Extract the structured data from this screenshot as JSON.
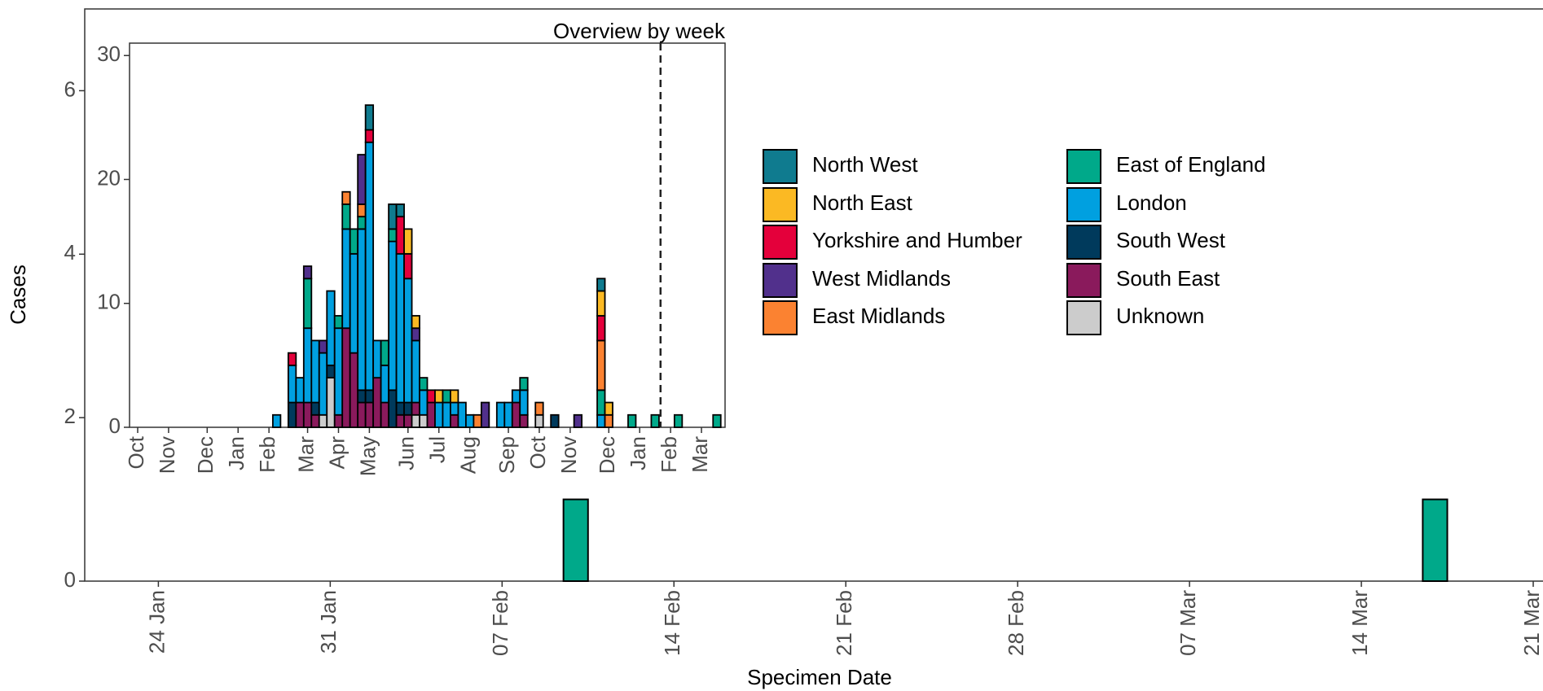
{
  "chart_data": [
    {
      "type": "bar",
      "x_label": "Specimen Date",
      "y_label": "Cases",
      "x": [
        "10 Feb",
        "17 Mar"
      ],
      "values": [
        1,
        1
      ],
      "color": "#00a98a",
      "xlim": [
        "21 Jan",
        "21 Mar"
      ],
      "xticks": [
        "24 Jan",
        "31 Jan",
        "07 Feb",
        "14 Feb",
        "21 Feb",
        "28 Feb",
        "07 Mar",
        "14 Mar",
        "21 Mar"
      ],
      "ylim": [
        0,
        7
      ],
      "yticks": [
        0,
        2,
        4,
        6
      ]
    },
    {
      "type": "stacked_bar",
      "title": "Overview by week",
      "legend": "right",
      "vline": 67.7,
      "categories": [
        "Oct",
        null,
        null,
        null,
        "Nov",
        null,
        null,
        null,
        null,
        "Dec",
        null,
        null,
        null,
        "Jan",
        null,
        null,
        null,
        "Feb",
        null,
        null,
        null,
        null,
        "Mar",
        null,
        null,
        null,
        "Apr",
        null,
        null,
        null,
        "May",
        null,
        null,
        null,
        null,
        "Jun",
        null,
        null,
        null,
        "Jul",
        null,
        null,
        null,
        "Aug",
        null,
        null,
        null,
        null,
        "Sep",
        null,
        null,
        null,
        "Oct",
        null,
        null,
        null,
        "Nov",
        null,
        null,
        null,
        null,
        "Dec",
        null,
        null,
        null,
        "Jan",
        null,
        null,
        null,
        "Feb",
        null,
        null,
        null,
        "Mar",
        null,
        null
      ],
      "ylim": [
        0,
        31
      ],
      "yticks": [
        0,
        10,
        20,
        30
      ],
      "series": [
        {
          "name": "North West",
          "color": "#0f7b8f",
          "values": [
            0,
            0,
            0,
            0,
            0,
            0,
            0,
            0,
            0,
            0,
            0,
            0,
            0,
            0,
            0,
            0,
            0,
            0,
            0,
            0,
            0,
            0,
            0,
            0,
            0,
            0,
            0,
            0,
            0,
            0,
            2,
            0,
            0,
            2,
            1,
            0,
            0,
            0,
            0,
            0,
            0,
            0,
            0,
            0,
            0,
            0,
            0,
            0,
            0,
            0,
            0,
            0,
            0,
            0,
            0,
            0,
            0,
            0,
            0,
            0,
            1,
            0,
            0,
            0,
            0,
            0,
            0,
            0,
            0,
            0,
            0,
            0,
            0,
            0,
            0,
            0
          ]
        },
        {
          "name": "North East",
          "color": "#fbb923",
          "values": [
            0,
            0,
            0,
            0,
            0,
            0,
            0,
            0,
            0,
            0,
            0,
            0,
            0,
            0,
            0,
            0,
            0,
            0,
            0,
            0,
            0,
            0,
            0,
            0,
            0,
            0,
            0,
            0,
            0,
            0,
            0,
            0,
            0,
            0,
            0,
            2,
            1,
            0,
            0,
            1,
            0,
            1,
            0,
            0,
            0,
            0,
            0,
            0,
            0,
            0,
            0,
            0,
            0,
            0,
            0,
            0,
            0,
            0,
            0,
            0,
            2,
            1,
            0,
            0,
            0,
            0,
            0,
            0,
            0,
            0,
            0,
            0,
            0,
            0,
            0,
            0
          ]
        },
        {
          "name": "Yorkshire and Humber",
          "color": "#e4003b",
          "values": [
            0,
            0,
            0,
            0,
            0,
            0,
            0,
            0,
            0,
            0,
            0,
            0,
            0,
            0,
            0,
            0,
            0,
            0,
            0,
            0,
            1,
            0,
            0,
            0,
            0,
            0,
            0,
            0,
            0,
            0,
            1,
            0,
            0,
            0,
            3,
            2,
            0,
            0,
            1,
            0,
            0,
            0,
            0,
            0,
            0,
            0,
            0,
            0,
            0,
            0,
            0,
            0,
            0,
            0,
            0,
            0,
            0,
            0,
            0,
            0,
            2,
            0,
            0,
            0,
            0,
            0,
            0,
            0,
            0,
            0,
            0,
            0,
            0,
            0,
            0,
            0
          ]
        },
        {
          "name": "West Midlands",
          "color": "#51308c",
          "values": [
            0,
            0,
            0,
            0,
            0,
            0,
            0,
            0,
            0,
            0,
            0,
            0,
            0,
            0,
            0,
            0,
            0,
            0,
            0,
            0,
            0,
            0,
            1,
            0,
            1,
            0,
            0,
            0,
            0,
            4,
            0,
            0,
            0,
            0,
            0,
            0,
            1,
            0,
            0,
            0,
            0,
            0,
            0,
            0,
            0,
            2,
            0,
            0,
            0,
            0,
            0,
            0,
            0,
            0,
            0,
            0,
            0,
            1,
            0,
            0,
            0,
            0,
            0,
            0,
            0,
            0,
            0,
            0,
            0,
            0,
            0,
            0,
            0,
            0,
            0,
            0
          ]
        },
        {
          "name": "East Midlands",
          "color": "#fb8231",
          "values": [
            0,
            0,
            0,
            0,
            0,
            0,
            0,
            0,
            0,
            0,
            0,
            0,
            0,
            0,
            0,
            0,
            0,
            0,
            0,
            0,
            0,
            0,
            0,
            0,
            0,
            0,
            0,
            1,
            0,
            1,
            0,
            0,
            0,
            0,
            0,
            0,
            0,
            0,
            0,
            0,
            0,
            0,
            0,
            0,
            1,
            0,
            0,
            0,
            0,
            0,
            0,
            0,
            1,
            0,
            0,
            0,
            0,
            0,
            0,
            0,
            4,
            1,
            0,
            0,
            0,
            0,
            0,
            0,
            0,
            0,
            0,
            0,
            0,
            0,
            0,
            0
          ]
        },
        {
          "name": "East of England",
          "color": "#00a98a",
          "values": [
            0,
            0,
            0,
            0,
            0,
            0,
            0,
            0,
            0,
            0,
            0,
            0,
            0,
            0,
            0,
            0,
            0,
            0,
            0,
            0,
            0,
            0,
            4,
            0,
            0,
            0,
            1,
            2,
            2,
            1,
            0,
            0,
            2,
            1,
            0,
            0,
            0,
            1,
            0,
            0,
            1,
            0,
            0,
            0,
            0,
            0,
            0,
            0,
            0,
            0,
            1,
            0,
            0,
            0,
            0,
            0,
            0,
            0,
            0,
            0,
            2,
            0,
            0,
            0,
            1,
            0,
            0,
            1,
            0,
            0,
            1,
            0,
            0,
            0,
            0,
            1
          ]
        },
        {
          "name": "London",
          "color": "#00a0e0",
          "values": [
            0,
            0,
            0,
            0,
            0,
            0,
            0,
            0,
            0,
            0,
            0,
            0,
            0,
            0,
            0,
            0,
            0,
            0,
            1,
            0,
            3,
            2,
            6,
            5,
            5,
            6,
            7,
            8,
            8,
            13,
            20,
            3,
            3,
            12,
            12,
            10,
            5,
            2,
            0,
            2,
            2,
            1,
            2,
            1,
            0,
            0,
            0,
            2,
            2,
            1,
            2,
            0,
            0,
            0,
            0,
            0,
            0,
            0,
            0,
            0,
            1,
            0,
            0,
            0,
            0,
            0,
            0,
            0,
            0,
            0,
            0,
            0,
            0,
            0,
            0,
            0
          ]
        },
        {
          "name": "South West",
          "color": "#003a5c",
          "values": [
            0,
            0,
            0,
            0,
            0,
            0,
            0,
            0,
            0,
            0,
            0,
            0,
            0,
            0,
            0,
            0,
            0,
            0,
            0,
            0,
            2,
            0,
            0,
            1,
            0,
            1,
            0,
            0,
            0,
            1,
            1,
            0,
            0,
            3,
            1,
            1,
            0,
            0,
            0,
            0,
            0,
            0,
            0,
            0,
            0,
            0,
            0,
            0,
            0,
            0,
            0,
            0,
            0,
            0,
            1,
            0,
            0,
            0,
            0,
            0,
            0,
            0,
            0,
            0,
            0,
            0,
            0,
            0,
            0,
            0,
            0,
            0,
            0,
            0,
            0,
            0
          ]
        },
        {
          "name": "South East",
          "color": "#8a1a5c",
          "values": [
            0,
            0,
            0,
            0,
            0,
            0,
            0,
            0,
            0,
            0,
            0,
            0,
            0,
            0,
            0,
            0,
            0,
            0,
            0,
            0,
            0,
            2,
            2,
            1,
            0,
            0,
            1,
            8,
            6,
            2,
            2,
            4,
            2,
            0,
            1,
            1,
            1,
            0,
            2,
            0,
            0,
            1,
            0,
            0,
            0,
            0,
            0,
            0,
            0,
            2,
            1,
            0,
            0,
            0,
            0,
            0,
            0,
            0,
            0,
            0,
            0,
            0,
            0,
            0,
            0,
            0,
            0,
            0,
            0,
            0,
            0,
            0,
            0,
            0,
            0,
            0
          ]
        },
        {
          "name": "Unknown",
          "color": "#cccccc",
          "values": [
            0,
            0,
            0,
            0,
            0,
            0,
            0,
            0,
            0,
            0,
            0,
            0,
            0,
            0,
            0,
            0,
            0,
            0,
            0,
            0,
            0,
            0,
            0,
            0,
            1,
            4,
            0,
            0,
            0,
            0,
            0,
            0,
            0,
            0,
            0,
            0,
            1,
            1,
            0,
            0,
            0,
            0,
            0,
            0,
            0,
            0,
            0,
            0,
            0,
            0,
            0,
            0,
            1,
            0,
            0,
            0,
            0,
            0,
            0,
            0,
            0,
            0,
            0,
            0,
            0,
            0,
            0,
            0,
            0,
            0,
            0,
            0,
            0,
            0,
            0,
            0
          ]
        }
      ]
    }
  ]
}
